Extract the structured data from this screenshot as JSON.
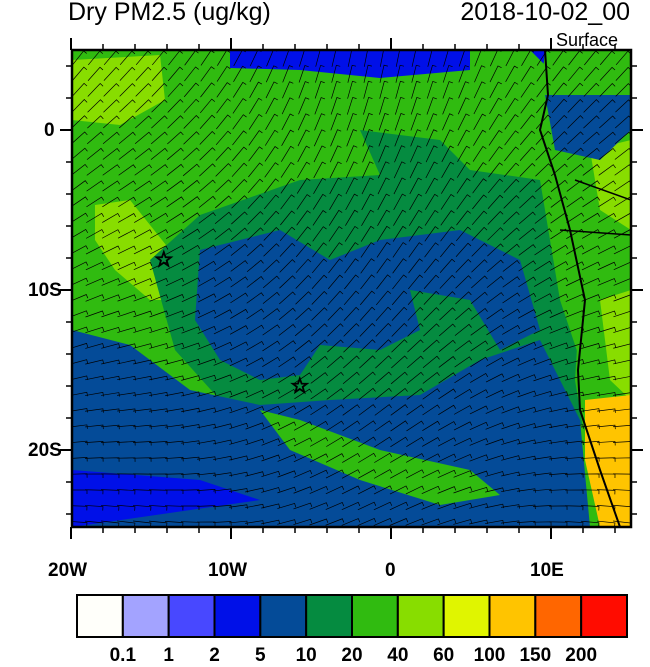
{
  "header": {
    "title": "Dry PM2.5 (ug/kg)",
    "datetime": "2018-10-02_00",
    "level": "Surface"
  },
  "map": {
    "lon_range": [
      -20,
      15
    ],
    "lat_range": [
      -25,
      5
    ],
    "lon_labels": [
      "20W",
      "10W",
      "0",
      "10E"
    ],
    "lat_labels": [
      "0",
      "10S",
      "20S"
    ],
    "markers": [
      {
        "type": "star-icon",
        "lon": -14.2,
        "lat": -8.1
      },
      {
        "type": "star-icon",
        "lon": -5.7,
        "lat": -16.0
      }
    ]
  },
  "colorbar": {
    "colors": [
      "#fffffa",
      "#a3a3ff",
      "#4848ff",
      "#0010e8",
      "#044b98",
      "#058b40",
      "#30bb10",
      "#88dd00",
      "#e0f500",
      "#ffc400",
      "#ff6600",
      "#ff0c00"
    ],
    "labels": [
      "0.1",
      "1",
      "2",
      "5",
      "10",
      "20",
      "40",
      "60",
      "100",
      "150",
      "200"
    ]
  }
}
